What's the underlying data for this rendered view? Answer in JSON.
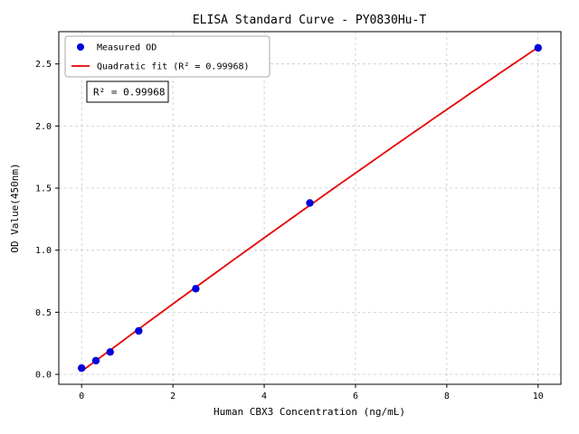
{
  "chart_data": {
    "type": "scatter",
    "title": "ELISA Standard Curve - PY0830Hu-T",
    "xlabel": "Human CBX3 Concentration (ng/mL)",
    "ylabel": "OD Value(450nm)",
    "x": [
      0,
      0.312,
      0.625,
      1.25,
      2.5,
      5,
      10
    ],
    "y": [
      0.05,
      0.11,
      0.18,
      0.35,
      0.69,
      1.38,
      2.63
    ],
    "series": [
      {
        "name": "Measured OD",
        "type": "scatter",
        "color": "#0000dd"
      },
      {
        "name": "Quadratic fit (R² = 0.99968)",
        "type": "line",
        "color": "#e60000"
      }
    ],
    "fit_type": "quadratic",
    "r_squared": "0.99968",
    "annotation": "R² = 0.99968",
    "legend": [
      {
        "label": "Measured OD"
      },
      {
        "label": "Quadratic fit (R² = 0.99968)"
      }
    ],
    "legend_position": "upper left",
    "xticks": [
      0,
      2,
      4,
      6,
      8,
      10
    ],
    "xtick_labels": [
      "0",
      "2",
      "4",
      "6",
      "8",
      "10"
    ],
    "yticks": [
      0.0,
      0.5,
      1.0,
      1.5,
      2.0,
      2.5
    ],
    "ytick_labels": [
      "0.0",
      "0.5",
      "1.0",
      "1.5",
      "2.0",
      "2.5"
    ],
    "xlim": [
      -0.5,
      10.5
    ],
    "ylim": [
      -0.08,
      2.76
    ],
    "grid": true,
    "grid_color": "#c8c8c8",
    "grid_style": "dashed",
    "point_color": "#0000dd",
    "line_color": "#e60000"
  }
}
